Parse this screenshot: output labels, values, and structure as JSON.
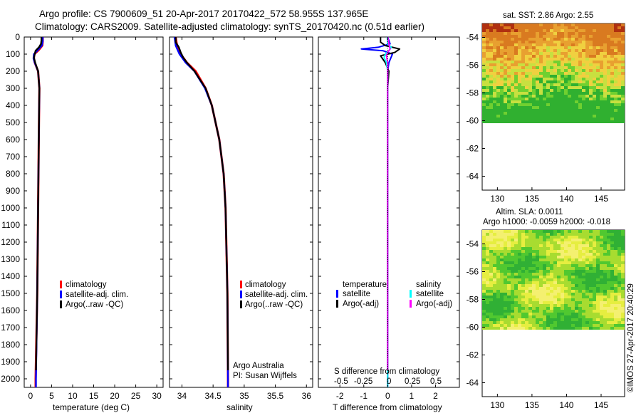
{
  "header": {
    "title_line1": "Argo profile: CS 7900609_51 20-Apr-2017 20170422_572 58.955S 137.965E",
    "title_line2": "Climatology: CARS2009. Satellite-adjusted climatology: synTS_20170420.nc (0.51d earlier)"
  },
  "colors": {
    "climatology": "#ff0000",
    "satellite": "#0000ff",
    "argo": "#000000",
    "salinity_satellite": "#00ffff",
    "salinity_argo": "#ff00ff"
  },
  "depth_axis": {
    "ticks": [
      0,
      100,
      200,
      300,
      400,
      500,
      600,
      700,
      800,
      900,
      1000,
      1100,
      1200,
      1300,
      1400,
      1500,
      1600,
      1700,
      1800,
      1900,
      2000
    ],
    "ylim": [
      2050,
      0
    ]
  },
  "temperature_panel": {
    "xlabel": "temperature (deg C)",
    "xticks": [
      0,
      5,
      10,
      15,
      20,
      25,
      30
    ],
    "xlim": [
      -1.5,
      31.5
    ],
    "legend": [
      "climatology",
      "satellite-adj. clim.",
      "Argo(..raw -QC)"
    ]
  },
  "salinity_panel": {
    "xlabel": "salinity",
    "xticks": [
      34,
      34.5,
      35,
      35.5,
      36
    ],
    "xlim": [
      33.8,
      36.1
    ],
    "legend": [
      "climatology",
      "satellite-adj. clim.",
      "Argo(..raw -QC)"
    ],
    "note_line1": "Argo Australia",
    "note_line2": "PI: Susan Wijffels"
  },
  "difference_panel": {
    "legend_temperature_header": "temperature",
    "legend_salinity_header": "salinity",
    "legend_temperature": [
      "satellite",
      "Argo(-adj)"
    ],
    "legend_salinity": [
      "satellite",
      "Argo(-adj)"
    ],
    "s_axis_label": "S difference from climatology",
    "s_ticks": [
      "-0.5",
      "-0.25",
      "0",
      "0.25",
      "0.5"
    ],
    "t_axis_label": "T difference from climatology",
    "t_ticks": [
      "-2",
      "-1",
      "0",
      "1",
      "2"
    ],
    "t_xlim": [
      -2.9,
      3.0
    ]
  },
  "sst_map": {
    "title": "sat. SST: 2.86 Argo: 2.55",
    "yticks": [
      "-54",
      "-56",
      "-58",
      "-60",
      "-62",
      "-64"
    ],
    "xticks": [
      "130",
      "135",
      "140",
      "145"
    ]
  },
  "sla_map": {
    "title_line1": "Altim. SLA: 0.0011",
    "title_line2": "Argo h1000: -0.0059 h2000: -0.018",
    "yticks": [
      "-54",
      "-56",
      "-58",
      "-60",
      "-62",
      "-64"
    ],
    "xticks": [
      "130",
      "135",
      "140",
      "145"
    ]
  },
  "credit": "©IMOS 27-Apr-2017 20:40:29",
  "chart_data": [
    {
      "type": "line",
      "xlabel": "temperature (deg C)",
      "ylabel": "",
      "xlim": [
        -1.5,
        31.5
      ],
      "ylim": [
        2050,
        0
      ],
      "series": [
        {
          "name": "climatology",
          "depth": [
            0,
            25,
            50,
            75,
            100,
            125,
            150,
            200,
            300,
            500,
            1000,
            1500,
            2000,
            2050
          ],
          "values": [
            2.9,
            2.9,
            2.8,
            2.0,
            0.9,
            0.8,
            1.0,
            1.8,
            2.1,
            2.0,
            1.8,
            1.6,
            1.2,
            1.2
          ]
        },
        {
          "name": "satellite-adj. clim.",
          "depth": [
            0,
            25,
            50,
            75,
            100,
            125,
            150,
            200,
            300,
            500,
            1000,
            1500,
            2000,
            2050
          ],
          "values": [
            2.9,
            2.9,
            2.7,
            1.8,
            0.8,
            0.7,
            1.0,
            1.8,
            2.1,
            2.0,
            1.8,
            1.6,
            1.3,
            1.3
          ]
        },
        {
          "name": "Argo(..raw -QC)",
          "depth": [
            0,
            20,
            40,
            60,
            80,
            100,
            120,
            150,
            200,
            300,
            500,
            1000,
            1500,
            1950
          ],
          "values": [
            2.6,
            2.6,
            2.5,
            2.0,
            1.2,
            1.0,
            0.8,
            1.1,
            1.8,
            2.1,
            2.0,
            1.8,
            1.6,
            1.3
          ]
        }
      ]
    },
    {
      "type": "line",
      "xlabel": "salinity",
      "ylabel": "",
      "xlim": [
        33.8,
        36.1
      ],
      "ylim": [
        2050,
        0
      ],
      "series": [
        {
          "name": "climatology",
          "depth": [
            0,
            50,
            100,
            150,
            200,
            300,
            400,
            600,
            800,
            1000,
            1500,
            2000,
            2050
          ],
          "values": [
            33.9,
            33.92,
            33.98,
            34.08,
            34.22,
            34.38,
            34.48,
            34.6,
            34.67,
            34.7,
            34.73,
            34.74,
            34.74
          ]
        },
        {
          "name": "satellite-adj. clim.",
          "depth": [
            0,
            50,
            100,
            150,
            200,
            300,
            400,
            600,
            800,
            1000,
            1500,
            2000,
            2050
          ],
          "values": [
            33.88,
            33.9,
            33.96,
            34.06,
            34.2,
            34.37,
            34.48,
            34.6,
            34.67,
            34.7,
            34.73,
            34.74,
            34.74
          ]
        },
        {
          "name": "Argo(..raw -QC)",
          "depth": [
            0,
            30,
            60,
            90,
            120,
            150,
            200,
            300,
            400,
            600,
            800,
            1000,
            1500,
            1950
          ],
          "values": [
            33.9,
            33.9,
            33.95,
            33.98,
            34.02,
            34.08,
            34.2,
            34.38,
            34.48,
            34.6,
            34.67,
            34.7,
            34.73,
            34.74
          ]
        }
      ]
    },
    {
      "type": "line",
      "xlabel": "T difference from climatology",
      "ylabel": "",
      "xlim": [
        -2.9,
        3.0
      ],
      "ylim": [
        2050,
        0
      ],
      "series": [
        {
          "name": "temperature satellite",
          "depth": [
            0,
            40,
            60,
            70,
            80,
            100,
            150,
            200,
            300,
            2050
          ],
          "values": [
            0.0,
            0.1,
            -0.4,
            -1.1,
            -0.2,
            0.2,
            0.05,
            0.0,
            0.0,
            0.0
          ]
        },
        {
          "name": "temperature Argo(-adj)",
          "depth": [
            0,
            30,
            50,
            70,
            90,
            110,
            150,
            200,
            300,
            500,
            1950
          ],
          "values": [
            -0.3,
            -0.3,
            -0.1,
            0.5,
            0.3,
            -0.3,
            -0.1,
            0.05,
            0.0,
            0.0,
            0.0
          ]
        },
        {
          "name": "salinity satellite",
          "depth": [
            0,
            40,
            60,
            80,
            100,
            120,
            150,
            200,
            300,
            2050
          ],
          "values": [
            -0.02,
            0.0,
            0.15,
            0.05,
            -0.1,
            -0.15,
            -0.05,
            0.0,
            0.0,
            0.0
          ]
        },
        {
          "name": "salinity Argo(-adj)",
          "depth": [
            0,
            40,
            70,
            90,
            110,
            150,
            300,
            1950
          ],
          "values": [
            0.0,
            0.05,
            0.1,
            0.0,
            -0.05,
            0.0,
            0.0,
            0.0
          ]
        }
      ]
    }
  ]
}
